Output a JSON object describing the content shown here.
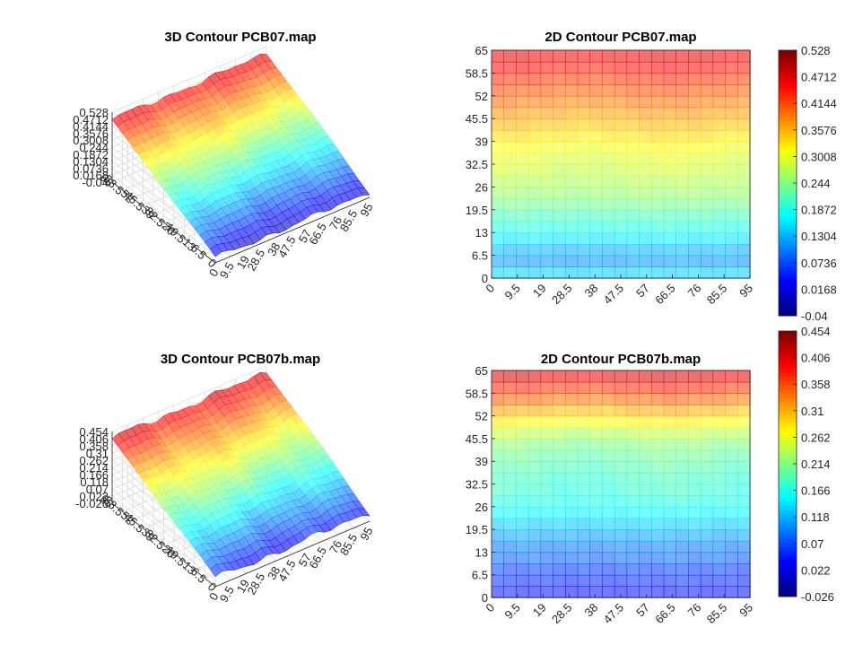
{
  "chart_data": [
    {
      "type": "surface",
      "title": "3D Contour PCB07.map",
      "x_ticks": [
        "0",
        "9.5",
        "19",
        "28.5",
        "38",
        "47.5",
        "57",
        "66.5",
        "76",
        "85.5",
        "95"
      ],
      "y_ticks": [
        "0",
        "6.5",
        "13",
        "19.5",
        "26",
        "32.5",
        "39",
        "45.5",
        "52",
        "58.5",
        "65"
      ],
      "z_ticks": [
        "-0.04",
        "0.0168",
        "0.0736",
        "0.1304",
        "0.1872",
        "0.244",
        "0.3008",
        "0.3576",
        "0.4144",
        "0.4712",
        "0.528"
      ],
      "xlim": [
        0,
        95
      ],
      "ylim": [
        0,
        65
      ],
      "zlim": [
        -0.04,
        0.528
      ],
      "z_low": 0.0,
      "z_high": 0.47,
      "colormap": "jet",
      "grid": true
    },
    {
      "type": "heatmap",
      "title": "2D Contour PCB07.map",
      "x_ticks": [
        "0",
        "9.5",
        "19",
        "28.5",
        "38",
        "47.5",
        "57",
        "66.5",
        "76",
        "85.5",
        "95"
      ],
      "y_ticks": [
        "0",
        "6.5",
        "13",
        "19.5",
        "26",
        "32.5",
        "39",
        "45.5",
        "52",
        "58.5",
        "65"
      ],
      "colorbar_ticks": [
        "-0.04",
        "0.0168",
        "0.0736",
        "0.1304",
        "0.1872",
        "0.244",
        "0.3008",
        "0.3576",
        "0.4144",
        "0.4712",
        "0.528"
      ],
      "clim": [
        -0.04,
        0.528
      ],
      "columns": 21,
      "row_values": [
        0.145,
        0.115,
        0.13,
        0.16,
        0.19,
        0.21,
        0.235,
        0.255,
        0.27,
        0.285,
        0.295,
        0.31,
        0.33,
        0.35,
        0.37,
        0.39,
        0.41,
        0.43,
        0.45,
        0.47
      ],
      "colormap": "jet"
    },
    {
      "type": "surface",
      "title": "3D Contour PCB07b.map",
      "x_ticks": [
        "0",
        "9.5",
        "19",
        "28.5",
        "38",
        "47.5",
        "57",
        "66.5",
        "76",
        "85.5",
        "95"
      ],
      "y_ticks": [
        "0",
        "6.5",
        "13",
        "19.5",
        "26",
        "32.5",
        "39",
        "45.5",
        "52",
        "58.5",
        "65"
      ],
      "z_ticks": [
        "-0.026",
        "0.022",
        "0.07",
        "0.118",
        "0.166",
        "0.214",
        "0.262",
        "0.31",
        "0.358",
        "0.406",
        "0.454"
      ],
      "xlim": [
        0,
        95
      ],
      "ylim": [
        0,
        65
      ],
      "zlim": [
        -0.026,
        0.454
      ],
      "z_low": 0.03,
      "z_high": 0.41,
      "colormap": "jet",
      "grid": true
    },
    {
      "type": "heatmap",
      "title": "2D Contour PCB07b.map",
      "x_ticks": [
        "0",
        "9.5",
        "19",
        "28.5",
        "38",
        "47.5",
        "57",
        "66.5",
        "76",
        "85.5",
        "95"
      ],
      "y_ticks": [
        "0",
        "6.5",
        "13",
        "19.5",
        "26",
        "32.5",
        "39",
        "45.5",
        "52",
        "58.5",
        "65"
      ],
      "colorbar_ticks": [
        "-0.026",
        "0.022",
        "0.07",
        "0.118",
        "0.166",
        "0.214",
        "0.262",
        "0.31",
        "0.358",
        "0.406",
        "0.454"
      ],
      "clim": [
        -0.026,
        0.454
      ],
      "columns": 21,
      "row_values": [
        0.04,
        0.05,
        0.06,
        0.08,
        0.09,
        0.11,
        0.13,
        0.15,
        0.165,
        0.175,
        0.18,
        0.19,
        0.2,
        0.215,
        0.24,
        0.275,
        0.31,
        0.345,
        0.375,
        0.41
      ],
      "colormap": "jet"
    }
  ]
}
